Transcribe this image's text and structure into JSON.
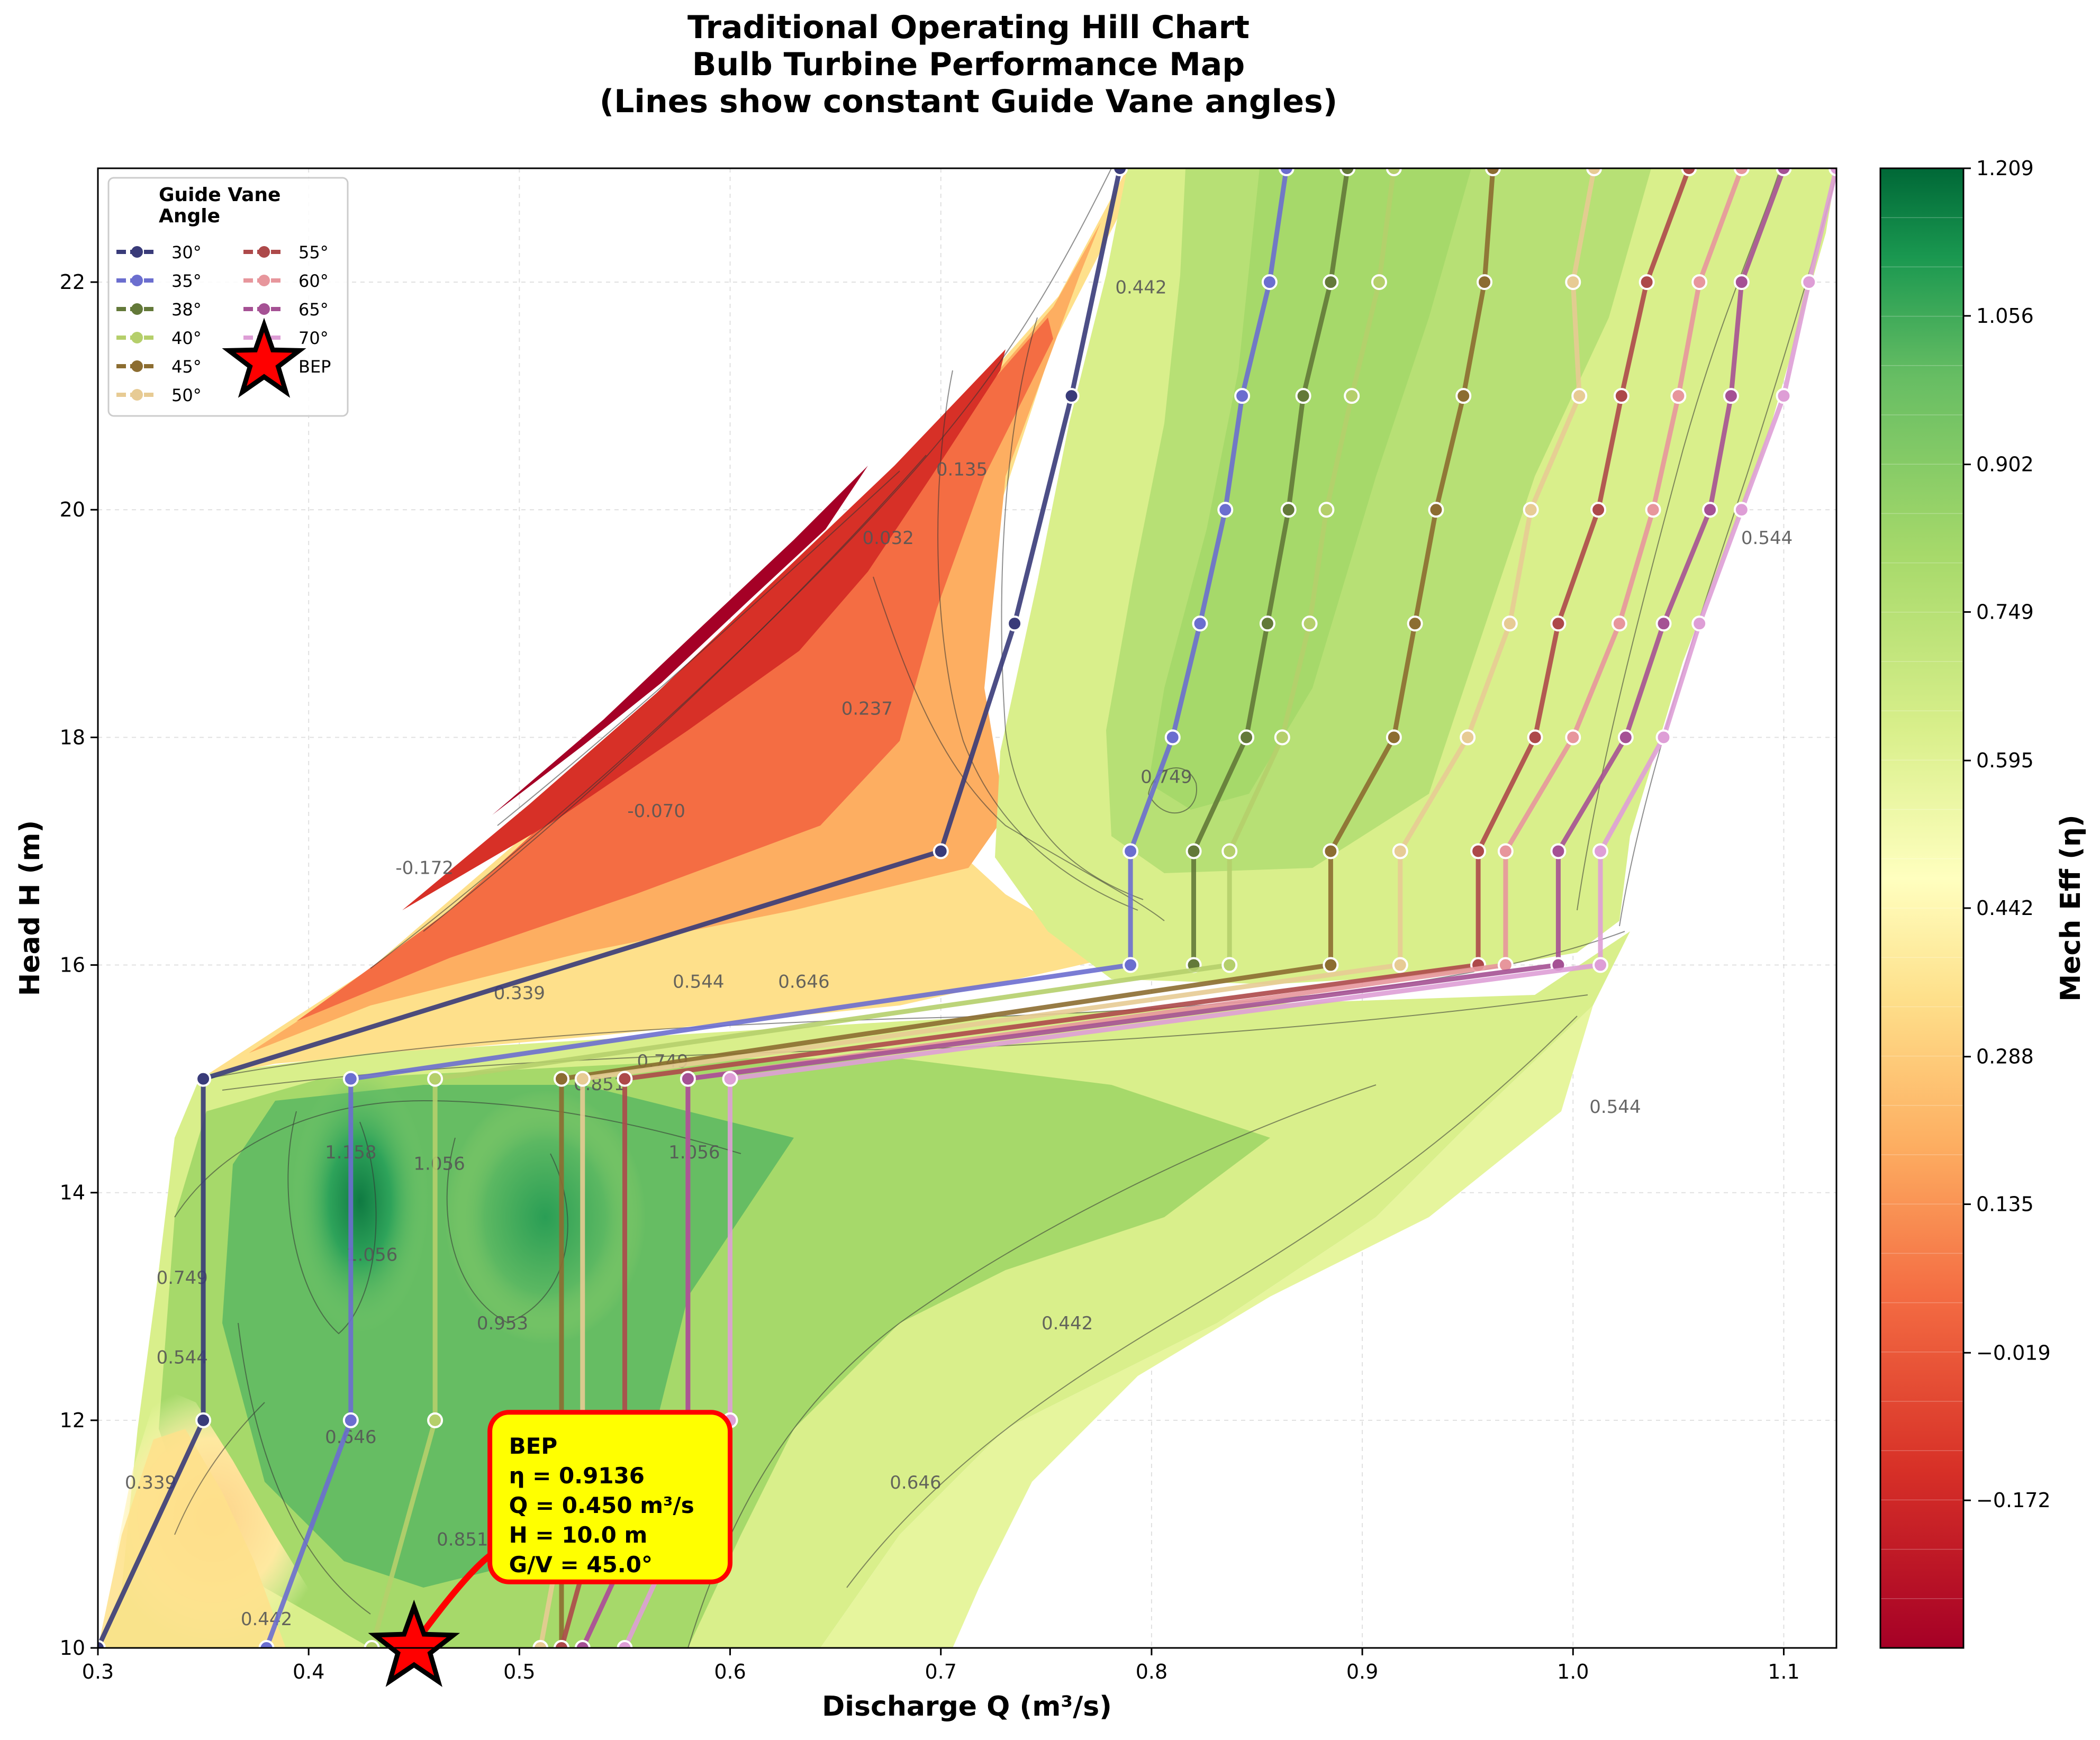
{
  "chart_data": {
    "type": "contour-line",
    "title": [
      "Traditional Operating Hill Chart",
      "Bulb Turbine Performance Map",
      "(Lines show constant Guide Vane angles)"
    ],
    "xlabel": "Discharge Q (m³/s)",
    "ylabel": "Head H (m)",
    "xlim": [
      0.3,
      1.125
    ],
    "ylim": [
      10,
      23
    ],
    "xticks": [
      0.3,
      0.4,
      0.5,
      0.6,
      0.7,
      0.8,
      0.9,
      1.0,
      1.1
    ],
    "xtick_labels": [
      "0.3",
      "0.4",
      "0.5",
      "0.6",
      "0.7",
      "0.8",
      "0.9",
      "1.0",
      "1.1"
    ],
    "yticks": [
      10,
      12,
      14,
      16,
      18,
      20,
      22
    ],
    "ytick_labels": [
      "10",
      "12",
      "14",
      "16",
      "18",
      "20",
      "22"
    ],
    "grid": true,
    "colorbar": {
      "label": "Mech Eff (η)",
      "range": [
        -0.325,
        1.209
      ],
      "ticks": [
        1.209,
        1.056,
        0.902,
        0.749,
        0.595,
        0.442,
        0.288,
        0.135,
        -0.019,
        -0.172
      ],
      "tick_labels": [
        "1.209",
        "1.056",
        "0.902",
        "0.749",
        "0.595",
        "0.442",
        "0.288",
        "0.135",
        "−0.019",
        "−0.172"
      ],
      "colormap": "RdYlGn"
    },
    "contour_labels": [
      {
        "text": "0.442",
        "x": 0.795,
        "y": 21.9
      },
      {
        "text": "0.135",
        "x": 0.71,
        "y": 20.3
      },
      {
        "text": "0.032",
        "x": 0.675,
        "y": 19.7
      },
      {
        "text": "0.237",
        "x": 0.665,
        "y": 18.2
      },
      {
        "text": "-0.070",
        "x": 0.565,
        "y": 17.3
      },
      {
        "text": "-0.172",
        "x": 0.455,
        "y": 16.8
      },
      {
        "text": "0.339",
        "x": 0.5,
        "y": 15.7
      },
      {
        "text": "0.544",
        "x": 0.585,
        "y": 15.8
      },
      {
        "text": "0.646",
        "x": 0.635,
        "y": 15.8
      },
      {
        "text": "0.749",
        "x": 0.807,
        "y": 17.6
      },
      {
        "text": "0.749",
        "x": 0.568,
        "y": 15.1
      },
      {
        "text": "0.851",
        "x": 0.538,
        "y": 14.9
      },
      {
        "text": "1.158",
        "x": 0.42,
        "y": 14.3
      },
      {
        "text": "1.056",
        "x": 0.462,
        "y": 14.2
      },
      {
        "text": "1.056",
        "x": 0.583,
        "y": 14.3
      },
      {
        "text": "1.056",
        "x": 0.43,
        "y": 13.4
      },
      {
        "text": "0.953",
        "x": 0.492,
        "y": 12.8
      },
      {
        "text": "0.749",
        "x": 0.34,
        "y": 13.2
      },
      {
        "text": "0.544",
        "x": 0.34,
        "y": 12.5
      },
      {
        "text": "0.339",
        "x": 0.325,
        "y": 11.4
      },
      {
        "text": "0.646",
        "x": 0.42,
        "y": 11.8
      },
      {
        "text": "0.851",
        "x": 0.473,
        "y": 10.9
      },
      {
        "text": "0.646",
        "x": 0.688,
        "y": 11.4
      },
      {
        "text": "0.442",
        "x": 0.76,
        "y": 12.8
      },
      {
        "text": "0.544",
        "x": 1.02,
        "y": 14.7
      },
      {
        "text": "0.544",
        "x": 1.092,
        "y": 19.7
      },
      {
        "text": "0.442",
        "x": 0.38,
        "y": 10.2
      }
    ],
    "series": [
      {
        "name": "30°",
        "color": "#393b79",
        "points": [
          [
            0.3,
            10
          ],
          [
            0.35,
            12
          ],
          [
            0.35,
            15
          ],
          [
            0.7,
            17
          ],
          [
            0.735,
            19
          ],
          [
            0.762,
            21
          ],
          [
            0.785,
            23
          ]
        ]
      },
      {
        "name": "35°",
        "color": "#6b6ecf",
        "points": [
          [
            0.38,
            10
          ],
          [
            0.42,
            12
          ],
          [
            0.42,
            15
          ],
          [
            0.79,
            16
          ],
          [
            0.79,
            17
          ],
          [
            0.81,
            18
          ],
          [
            0.823,
            19
          ],
          [
            0.835,
            20
          ],
          [
            0.843,
            21
          ],
          [
            0.856,
            22
          ],
          [
            0.864,
            23
          ]
        ]
      },
      {
        "name": "38°",
        "color": "#637939",
        "points": [
          [
            0.82,
            16
          ],
          [
            0.82,
            17
          ],
          [
            0.845,
            18
          ],
          [
            0.855,
            19
          ],
          [
            0.865,
            20
          ],
          [
            0.872,
            21
          ],
          [
            0.885,
            22
          ],
          [
            0.893,
            23
          ]
        ]
      },
      {
        "name": "40°",
        "color": "#b5cf6b",
        "points": [
          [
            0.43,
            10
          ],
          [
            0.46,
            12
          ],
          [
            0.46,
            15
          ],
          [
            0.837,
            16
          ],
          [
            0.837,
            17
          ],
          [
            0.862,
            18
          ],
          [
            0.875,
            19
          ],
          [
            0.883,
            20
          ],
          [
            0.895,
            21
          ],
          [
            0.908,
            22
          ],
          [
            0.915,
            23
          ]
        ]
      },
      {
        "name": "45°",
        "color": "#8c6d31",
        "points": [
          [
            0.52,
            10
          ],
          [
            0.52,
            12
          ],
          [
            0.52,
            15
          ],
          [
            0.885,
            16
          ],
          [
            0.885,
            17
          ],
          [
            0.915,
            18
          ],
          [
            0.925,
            19
          ],
          [
            0.935,
            20
          ],
          [
            0.948,
            21
          ],
          [
            0.958,
            22
          ],
          [
            0.962,
            23
          ]
        ]
      },
      {
        "name": "50°",
        "color": "#e7cb94",
        "points": [
          [
            0.51,
            10
          ],
          [
            0.53,
            12
          ],
          [
            0.53,
            15
          ],
          [
            0.918,
            16
          ],
          [
            0.918,
            17
          ],
          [
            0.95,
            18
          ],
          [
            0.97,
            19
          ],
          [
            0.98,
            20
          ],
          [
            1.003,
            21
          ],
          [
            1.0,
            22
          ],
          [
            1.01,
            23
          ]
        ]
      },
      {
        "name": "55°",
        "color": "#ad494a",
        "points": [
          [
            0.52,
            10
          ],
          [
            0.55,
            12
          ],
          [
            0.55,
            15
          ],
          [
            0.955,
            16
          ],
          [
            0.955,
            17
          ],
          [
            0.982,
            18
          ],
          [
            0.993,
            19
          ],
          [
            1.012,
            20
          ],
          [
            1.023,
            21
          ],
          [
            1.035,
            22
          ],
          [
            1.055,
            23
          ]
        ]
      },
      {
        "name": "60°",
        "color": "#e7969c",
        "points": [
          [
            0.53,
            10
          ],
          [
            0.58,
            12
          ],
          [
            0.58,
            15
          ],
          [
            0.968,
            16
          ],
          [
            0.968,
            17
          ],
          [
            1.0,
            18
          ],
          [
            1.022,
            19
          ],
          [
            1.038,
            20
          ],
          [
            1.05,
            21
          ],
          [
            1.06,
            22
          ],
          [
            1.08,
            23
          ]
        ]
      },
      {
        "name": "65°",
        "color": "#a55194",
        "points": [
          [
            0.53,
            10
          ],
          [
            0.58,
            12
          ],
          [
            0.58,
            15
          ],
          [
            0.993,
            16
          ],
          [
            0.993,
            17
          ],
          [
            1.025,
            18
          ],
          [
            1.043,
            19
          ],
          [
            1.065,
            20
          ],
          [
            1.075,
            21
          ],
          [
            1.08,
            22
          ],
          [
            1.1,
            23
          ]
        ]
      },
      {
        "name": "70°",
        "color": "#de9ed6",
        "points": [
          [
            0.55,
            10
          ],
          [
            0.6,
            12
          ],
          [
            0.6,
            15
          ],
          [
            1.013,
            16
          ],
          [
            1.013,
            17
          ],
          [
            1.043,
            18
          ],
          [
            1.06,
            19
          ],
          [
            1.08,
            20
          ],
          [
            1.1,
            21
          ],
          [
            1.112,
            22
          ],
          [
            1.125,
            23
          ]
        ]
      }
    ],
    "bep": {
      "legend": "BEP",
      "x": 0.45,
      "y": 10.0,
      "annotation": [
        "BEP",
        "η = 0.9136",
        "Q = 0.450 m³/s",
        "H = 10.0 m",
        "G/V = 45.0°"
      ]
    },
    "legend": {
      "title": [
        "Guide Vane",
        "Angle"
      ],
      "position": "top-left"
    }
  }
}
